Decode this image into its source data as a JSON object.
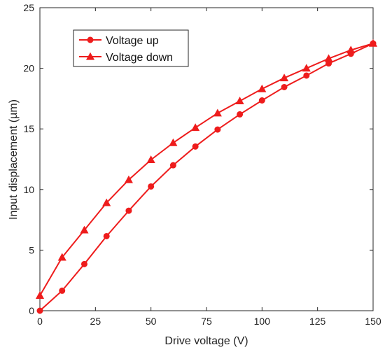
{
  "chart_data": {
    "type": "line",
    "xlabel": "Drive voltage (V)",
    "ylabel": "Input displacement (µm)",
    "xlim": [
      0,
      150
    ],
    "ylim": [
      0,
      25
    ],
    "xticks": [
      0,
      25,
      50,
      75,
      100,
      125,
      150
    ],
    "yticks": [
      0,
      5,
      10,
      15,
      20,
      25
    ],
    "grid": false,
    "legend_position": "top-left",
    "x": [
      0,
      10,
      20,
      30,
      40,
      50,
      60,
      70,
      80,
      90,
      100,
      110,
      120,
      130,
      140,
      150
    ],
    "series": [
      {
        "name": "Voltage up",
        "marker": "circle",
        "color": "#ee1c1c",
        "values": [
          0.0,
          1.65,
          3.85,
          6.15,
          8.25,
          10.25,
          12.0,
          13.55,
          14.95,
          16.2,
          17.35,
          18.45,
          19.4,
          20.4,
          21.2,
          22.05
        ]
      },
      {
        "name": "Voltage down",
        "marker": "triangle",
        "color": "#ee1c1c",
        "values": [
          1.25,
          4.4,
          6.65,
          8.9,
          10.8,
          12.45,
          13.85,
          15.1,
          16.3,
          17.3,
          18.3,
          19.2,
          20.0,
          20.8,
          21.5,
          22.05
        ]
      }
    ]
  }
}
